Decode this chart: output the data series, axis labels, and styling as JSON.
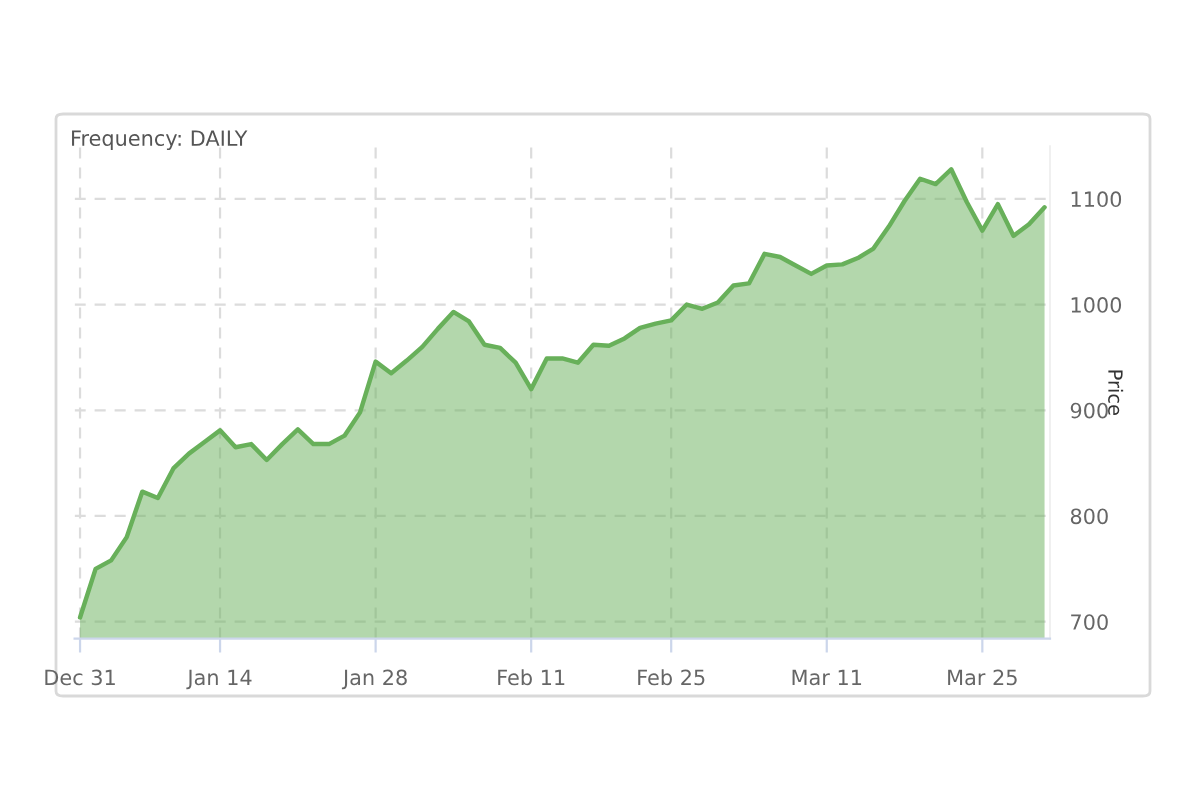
{
  "chart_data": {
    "type": "area",
    "categories": [
      "Dec 31",
      null,
      null,
      null,
      null,
      null,
      null,
      null,
      null,
      "Jan 14",
      null,
      null,
      null,
      null,
      null,
      null,
      null,
      null,
      null,
      "Jan 28",
      null,
      null,
      null,
      null,
      null,
      null,
      null,
      null,
      null,
      "Feb 11",
      null,
      null,
      null,
      null,
      null,
      null,
      null,
      null,
      "Feb 25",
      null,
      null,
      null,
      null,
      null,
      null,
      null,
      null,
      null,
      "Mar 11",
      null,
      null,
      null,
      null,
      null,
      null,
      null,
      null,
      null,
      "Mar 25",
      null,
      null,
      null,
      null
    ],
    "series": [
      {
        "color": "#68b05a",
        "values": [
          704,
          750,
          758,
          780,
          823,
          817,
          845,
          859,
          870,
          881,
          865,
          868,
          853,
          868,
          882,
          868,
          868,
          876,
          898,
          946,
          935,
          947,
          960,
          977,
          993,
          984,
          962,
          959,
          945,
          920,
          949,
          949,
          945,
          962,
          961,
          968,
          978,
          982,
          985,
          1000,
          996,
          1002,
          1018,
          1020,
          1048,
          1045,
          1037,
          1029,
          1037,
          1038,
          1044,
          1053,
          1074,
          1098,
          1119,
          1114,
          1128,
          1097,
          1070,
          1095,
          1065,
          1076,
          1092
        ]
      }
    ],
    "ylim": [
      684,
      1150
    ],
    "yticks": [
      700,
      800,
      900,
      1000,
      1100
    ],
    "ylabel": "Price",
    "grid": true,
    "annotations": [
      "Frequency: DAILY"
    ]
  }
}
